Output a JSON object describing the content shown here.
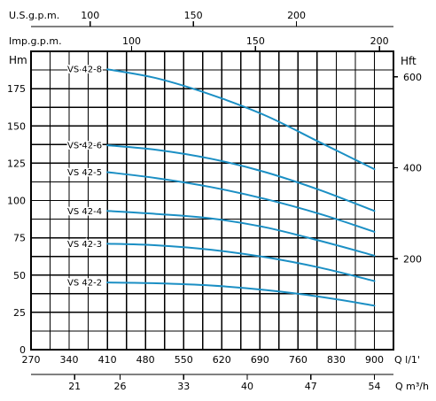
{
  "chart_data": {
    "type": "line",
    "axes": {
      "us_gpm": {
        "label": "U.S.g.p.m.",
        "ticks": [
          100,
          150,
          200
        ]
      },
      "imp_gpm": {
        "label": "Imp.g.p.m.",
        "ticks": [
          100,
          150,
          200
        ]
      },
      "head_m": {
        "label": "Hm",
        "ticks": [
          0,
          25,
          50,
          75,
          100,
          125,
          150,
          175
        ],
        "ylim": [
          0,
          200
        ]
      },
      "head_ft": {
        "label": "Hft",
        "ticks": [
          200,
          400,
          600
        ]
      },
      "flow_lmin": {
        "label": "Q l/1'",
        "ticks": [
          270,
          340,
          410,
          480,
          550,
          620,
          690,
          760,
          830,
          900
        ],
        "xlim": [
          270,
          935
        ]
      },
      "flow_m3h": {
        "label": "Q m³/h",
        "ticks": [
          21,
          26,
          33,
          40,
          47,
          54
        ]
      }
    },
    "grid": true,
    "series": [
      {
        "name": "VS 42-8",
        "x": [
          410,
          500,
          600,
          700,
          800,
          900
        ],
        "y": [
          188,
          182,
          171,
          157,
          139,
          121
        ]
      },
      {
        "name": "VS 42-6",
        "x": [
          410,
          500,
          600,
          700,
          800,
          900
        ],
        "y": [
          137,
          134,
          128,
          119,
          107,
          93
        ]
      },
      {
        "name": "VS 42-5",
        "x": [
          410,
          500,
          600,
          700,
          800,
          900
        ],
        "y": [
          119,
          115,
          109,
          101,
          91,
          79
        ]
      },
      {
        "name": "VS 42-4",
        "x": [
          410,
          500,
          600,
          700,
          800,
          900
        ],
        "y": [
          93,
          91,
          88,
          82,
          73,
          63
        ]
      },
      {
        "name": "VS 42-3",
        "x": [
          410,
          500,
          600,
          700,
          800,
          900
        ],
        "y": [
          71,
          70,
          67,
          62,
          55,
          46
        ]
      },
      {
        "name": "VS 42-2",
        "x": [
          410,
          500,
          600,
          700,
          800,
          900
        ],
        "y": [
          45,
          44.5,
          43,
          40,
          35.5,
          29.5
        ]
      }
    ]
  }
}
